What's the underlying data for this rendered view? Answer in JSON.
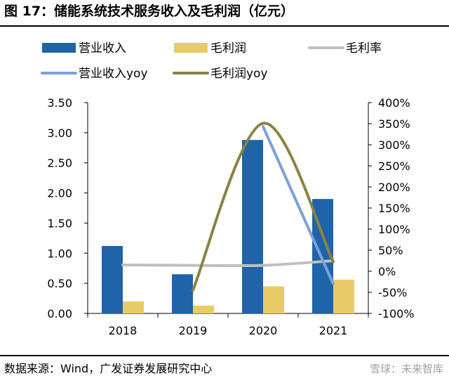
{
  "figure": {
    "title": "图 17：储能系统技术服务收入及毛利润（亿元）",
    "source": "数据来源：Wind，广发证券发展研究中心",
    "watermark": "雪球：未来智库"
  },
  "colors": {
    "revenue": "#1f63a8",
    "gross_profit": "#e8cb66",
    "margin": "#bfbfbf",
    "revenue_yoy": "#7da0d8",
    "gross_profit_yoy": "#8a8346",
    "axis": "#000000"
  },
  "chart_data": {
    "type": "bar",
    "categories": [
      "2018",
      "2019",
      "2020",
      "2021"
    ],
    "series": [
      {
        "name": "营业收入",
        "type": "bar",
        "axis": "left",
        "values": [
          1.12,
          0.65,
          2.88,
          1.9
        ]
      },
      {
        "name": "毛利润",
        "type": "bar",
        "axis": "left",
        "values": [
          0.2,
          0.13,
          0.45,
          0.56
        ]
      },
      {
        "name": "毛利率",
        "type": "line",
        "axis": "right",
        "values": [
          15,
          14,
          14,
          25
        ]
      },
      {
        "name": "营业收入yoy",
        "type": "line",
        "axis": "right",
        "values": [
          null,
          null,
          343,
          -30
        ]
      },
      {
        "name": "毛利润yoy",
        "type": "line",
        "axis": "right",
        "values": [
          null,
          -45,
          351,
          22
        ]
      }
    ],
    "y_left": {
      "min": 0,
      "max": 3.5,
      "step": 0.5,
      "tick_labels": [
        "0.00",
        "0.50",
        "1.00",
        "1.50",
        "2.00",
        "2.50",
        "3.00",
        "3.50"
      ]
    },
    "y_right": {
      "min": -100,
      "max": 400,
      "step": 50,
      "tick_labels": [
        "-100%",
        "-50%",
        "0%",
        "50%",
        "100%",
        "150%",
        "200%",
        "250%",
        "300%",
        "350%",
        "400%"
      ]
    },
    "legend_position": "top",
    "grid": false
  }
}
